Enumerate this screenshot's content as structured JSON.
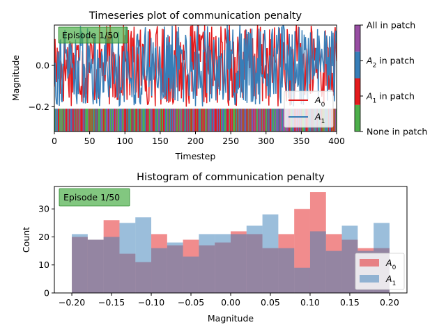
{
  "chart_data": [
    {
      "type": "line",
      "title": "Timeseries plot of communication penalty",
      "xlabel": "Timestep",
      "ylabel": "Magnitude",
      "xlim": [
        0,
        400
      ],
      "ylim": [
        -0.32,
        0.195
      ],
      "x_ticks": [
        0,
        50,
        100,
        150,
        200,
        250,
        300,
        350,
        400
      ],
      "y_ticks": [
        -0.2,
        0.0
      ],
      "badge": "Episode 1/50",
      "legend_position": "bottom-right",
      "grid": false,
      "series": [
        {
          "name": "A0",
          "name_base": "A",
          "name_sub": "0",
          "color": "#e41a1c",
          "seed": 17,
          "min": -0.2,
          "max": 0.2
        },
        {
          "name": "A1",
          "name_base": "A",
          "name_sub": "1",
          "color": "#377eb8",
          "seed": 91,
          "min": -0.2,
          "max": 0.2
        }
      ],
      "patch_strip": {
        "y_range": [
          -0.32,
          -0.21
        ],
        "states": [
          "None in patch",
          "A1 in patch",
          "A2 in patch",
          "All in patch"
        ],
        "colors": [
          "#4daf4a",
          "#e41a1c",
          "#377eb8",
          "#984ea3"
        ]
      },
      "colorbar": {
        "labels": [
          {
            "base": "None in patch",
            "sub": "",
            "tail": ""
          },
          {
            "base": "A",
            "sub": "1",
            "tail": " in patch"
          },
          {
            "base": "A",
            "sub": "2",
            "tail": " in patch"
          },
          {
            "base": "All in patch",
            "sub": "",
            "tail": ""
          }
        ],
        "colors": [
          "#4daf4a",
          "#e41a1c",
          "#377eb8",
          "#984ea3"
        ]
      }
    },
    {
      "type": "bar",
      "title": "Histogram of communication penalty",
      "xlabel": "Magnitude",
      "ylabel": "Count",
      "xlim": [
        -0.222,
        0.222
      ],
      "ylim": [
        0,
        38
      ],
      "x_ticks": [
        -0.2,
        -0.15,
        -0.1,
        -0.05,
        0.0,
        0.05,
        0.1,
        0.15,
        0.2
      ],
      "x_tick_labels": [
        "−0.20",
        "−0.15",
        "−0.10",
        "−0.05",
        "0.00",
        "0.05",
        "0.10",
        "0.15",
        "0.20"
      ],
      "y_ticks": [
        0,
        10,
        20,
        30
      ],
      "badge": "Episode 1/50",
      "legend_position": "bottom-right",
      "bin_edges": [
        -0.2,
        -0.18,
        -0.16,
        -0.14,
        -0.12,
        -0.1,
        -0.08,
        -0.06,
        -0.04,
        -0.02,
        0.0,
        0.02,
        0.04,
        0.06,
        0.08,
        0.1,
        0.12,
        0.14,
        0.16,
        0.18,
        0.2
      ],
      "series": [
        {
          "name": "A0",
          "name_base": "A",
          "name_sub": "0",
          "color": "#e41a1c",
          "opacity": 0.5,
          "values": [
            20,
            19,
            26,
            14,
            11,
            21,
            17,
            19,
            17,
            18,
            22,
            21,
            16,
            21,
            30,
            36,
            21,
            19,
            16,
            16
          ]
        },
        {
          "name": "A1",
          "name_base": "A",
          "name_sub": "1",
          "color": "#377eb8",
          "opacity": 0.5,
          "values": [
            21,
            19,
            20,
            25,
            27,
            16,
            18,
            13,
            21,
            21,
            21,
            24,
            28,
            16,
            9,
            22,
            15,
            24,
            15,
            25
          ]
        }
      ]
    }
  ]
}
